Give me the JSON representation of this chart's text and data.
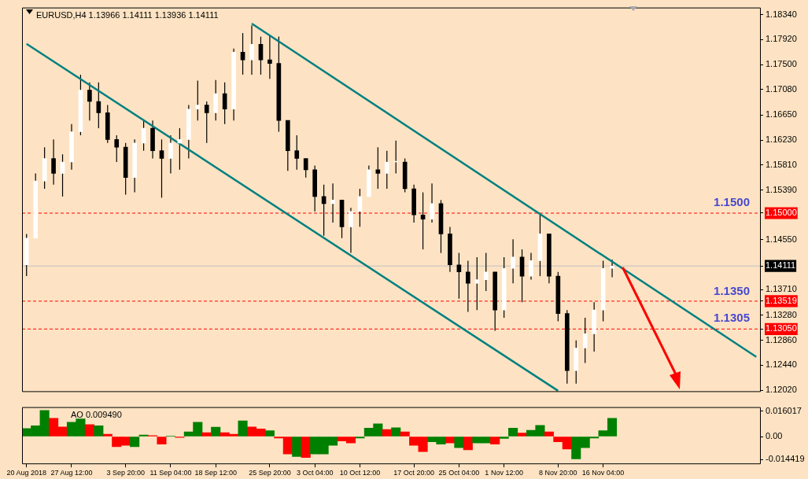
{
  "chart_data": [
    {
      "type": "candlestick",
      "title": "EURUSD,H4  1.13966 1.14111 1.13936 1.14111",
      "tick_labels": "y",
      "grid": false,
      "legend": false,
      "categories": [
        null,
        null,
        null,
        null,
        null,
        null,
        null,
        null,
        null,
        null,
        null,
        null,
        null,
        null,
        null,
        null,
        null,
        null,
        null,
        null,
        null,
        null,
        null,
        null,
        null,
        null,
        null,
        null,
        null,
        null,
        null,
        null,
        null,
        null,
        null,
        null,
        null,
        null,
        null,
        null,
        null,
        null,
        null,
        null,
        null,
        null,
        null,
        null,
        null,
        null,
        null,
        null,
        null,
        null,
        null,
        null,
        null,
        null,
        null,
        null,
        null,
        null,
        null,
        null,
        null,
        null,
        null,
        null,
        null,
        null,
        null,
        null,
        null,
        null,
        null,
        null,
        null,
        null,
        null,
        null,
        null,
        null
      ],
      "ohlc": [
        [
          1.1413,
          1.1465,
          1.1394,
          1.1458
        ],
        [
          1.1458,
          1.1567,
          1.1458,
          1.1554
        ],
        [
          1.1554,
          1.1611,
          1.1541,
          1.1592
        ],
        [
          1.1592,
          1.1624,
          1.1548,
          1.1567
        ],
        [
          1.1567,
          1.1599,
          1.1528,
          1.1586
        ],
        [
          1.1586,
          1.165,
          1.1573,
          1.1637
        ],
        [
          1.1637,
          1.1733,
          1.1631,
          1.1707
        ],
        [
          1.1707,
          1.172,
          1.1656,
          1.1688
        ],
        [
          1.1688,
          1.172,
          1.1643,
          1.1669
        ],
        [
          1.1669,
          1.1682,
          1.1618,
          1.1624
        ],
        [
          1.1624,
          1.1631,
          1.1586,
          1.1611
        ],
        [
          1.1611,
          1.1618,
          1.1531,
          1.156
        ],
        [
          1.156,
          1.1624,
          1.1535,
          1.1618
        ],
        [
          1.1618,
          1.1656,
          1.1605,
          1.1643
        ],
        [
          1.1643,
          1.1656,
          1.1592,
          1.1605
        ],
        [
          1.1605,
          1.1624,
          1.1526,
          1.1592
        ],
        [
          1.1592,
          1.1631,
          1.1567,
          1.1618
        ],
        [
          1.1618,
          1.1643,
          1.1573,
          1.1624
        ],
        [
          1.1624,
          1.1682,
          1.1592,
          1.1675
        ],
        [
          1.1675,
          1.1723,
          1.1656,
          1.1682
        ],
        [
          1.1682,
          1.1688,
          1.1618,
          1.1669
        ],
        [
          1.1669,
          1.1724,
          1.1656,
          1.1701
        ],
        [
          1.1701,
          1.172,
          1.165,
          1.1675
        ],
        [
          1.1675,
          1.1777,
          1.1656,
          1.1771
        ],
        [
          1.1771,
          1.1803,
          1.1733,
          1.1758
        ],
        [
          1.1758,
          1.1816,
          1.1733,
          1.1784
        ],
        [
          1.1784,
          1.1797,
          1.1733,
          1.1758
        ],
        [
          1.1758,
          1.1799,
          1.1726,
          1.1752
        ],
        [
          1.1752,
          1.1797,
          1.1637,
          1.1656
        ],
        [
          1.1656,
          1.1656,
          1.1571,
          1.1605
        ],
        [
          1.1605,
          1.1631,
          1.1573,
          1.1592
        ],
        [
          1.1592,
          1.1592,
          1.156,
          1.1573
        ],
        [
          1.1573,
          1.158,
          1.1503,
          1.1528
        ],
        [
          1.1528,
          1.1548,
          1.1462,
          1.1516
        ],
        [
          1.1516,
          1.155,
          1.1484,
          1.1522
        ],
        [
          1.1522,
          1.1522,
          1.1458,
          1.1477
        ],
        [
          1.1477,
          1.1509,
          1.1433,
          1.1503
        ],
        [
          1.1503,
          1.1541,
          1.1477,
          1.1528
        ],
        [
          1.1528,
          1.158,
          1.1528,
          1.1573
        ],
        [
          1.1573,
          1.1611,
          1.1541,
          1.1567
        ],
        [
          1.1567,
          1.1605,
          1.1541,
          1.1586
        ],
        [
          1.1586,
          1.1622,
          1.1567,
          1.1586
        ],
        [
          1.1586,
          1.1592,
          1.1535,
          1.1541
        ],
        [
          1.1541,
          1.1548,
          1.1484,
          1.1497
        ],
        [
          1.1497,
          1.1535,
          1.1439,
          1.149
        ],
        [
          1.149,
          1.155,
          1.1484,
          1.1516
        ],
        [
          1.1516,
          1.1522,
          1.1433,
          1.1465
        ],
        [
          1.1465,
          1.1477,
          1.1401,
          1.1413
        ],
        [
          1.1413,
          1.1433,
          1.1356,
          1.1401
        ],
        [
          1.1401,
          1.142,
          1.1334,
          1.1382
        ],
        [
          1.1382,
          1.1426,
          1.1337,
          1.1388
        ],
        [
          1.1388,
          1.1433,
          1.1369,
          1.1401
        ],
        [
          1.1401,
          1.1401,
          1.1302,
          1.1337
        ],
        [
          1.1337,
          1.1426,
          1.1324,
          1.1407
        ],
        [
          1.1407,
          1.1456,
          1.1382,
          1.1426
        ],
        [
          1.1426,
          1.1439,
          1.135,
          1.1394
        ],
        [
          1.1394,
          1.1433,
          1.1388,
          1.142
        ],
        [
          1.142,
          1.15,
          1.1394,
          1.1465
        ],
        [
          1.1465,
          1.1465,
          1.1382,
          1.1394
        ],
        [
          1.1394,
          1.1401,
          1.1318,
          1.1331
        ],
        [
          1.1331,
          1.1337,
          1.1213,
          1.1235
        ],
        [
          1.1235,
          1.1286,
          1.1213,
          1.1273
        ],
        [
          1.1273,
          1.1324,
          1.1248,
          1.1297
        ],
        [
          1.1297,
          1.135,
          1.1267,
          1.1337
        ],
        [
          1.1337,
          1.142,
          1.1318,
          1.1407
        ],
        [
          1.1407,
          1.1422,
          1.1392,
          1.1411
        ],
        null,
        null,
        null,
        null,
        null,
        null,
        null,
        null,
        null,
        null,
        null,
        null,
        null,
        null,
        null,
        null
      ],
      "series": [
        {
          "type": "line",
          "color": "#008080",
          "values": [
            1.1785,
            null,
            null,
            null,
            null,
            null,
            null,
            null,
            null,
            null,
            null,
            null,
            null,
            null,
            null,
            null,
            null,
            null,
            null,
            null,
            null,
            null,
            null,
            null,
            null,
            null,
            null,
            null,
            null,
            null,
            null,
            null,
            null,
            null,
            null,
            null,
            null,
            null,
            null,
            null,
            null,
            null,
            null,
            null,
            null,
            null,
            null,
            null,
            null,
            null,
            null,
            null,
            null,
            null,
            null,
            null,
            null,
            null,
            null,
            1.1201,
            null,
            null,
            null,
            null,
            null,
            null,
            null,
            null,
            null,
            null,
            null,
            null,
            null,
            null,
            null,
            null,
            null,
            null,
            null,
            null,
            null,
            null
          ]
        },
        {
          "type": "line",
          "color": "#008080",
          "values": [
            null,
            null,
            null,
            null,
            null,
            null,
            null,
            null,
            null,
            null,
            null,
            null,
            null,
            null,
            null,
            null,
            null,
            null,
            null,
            null,
            null,
            null,
            null,
            null,
            null,
            1.1819,
            null,
            null,
            null,
            null,
            null,
            null,
            null,
            null,
            null,
            null,
            null,
            null,
            null,
            null,
            null,
            null,
            null,
            null,
            null,
            null,
            null,
            null,
            null,
            null,
            null,
            null,
            null,
            null,
            null,
            null,
            null,
            null,
            null,
            null,
            null,
            null,
            null,
            null,
            null,
            null,
            null,
            null,
            null,
            null,
            null,
            null,
            null,
            null,
            null,
            null,
            null,
            null,
            null,
            null,
            null,
            1.1258
          ]
        }
      ],
      "ref_lines": [
        {
          "axis": "y",
          "value": 1.15,
          "label": "1.1500",
          "color": "#ff0000",
          "line_style": "dashed"
        },
        {
          "axis": "y",
          "value": 1.13519,
          "color": "#ff0000",
          "line_style": "dashed"
        },
        {
          "axis": "y",
          "value": 1.1305,
          "label": "1.1305",
          "color": "#ff0000",
          "line_style": "dashed"
        },
        {
          "axis": "y",
          "value": 1.14111,
          "color": "#c0c0c0",
          "line_style": "solid"
        }
      ],
      "annotations": [
        {
          "text": "1.1350",
          "y": 1.135
        }
      ],
      "ylim": [
        1.1199,
        1.1846
      ],
      "yticks": [
        {
          "value": 1.1834,
          "label": "1.18340"
        },
        {
          "value": 1.1792,
          "label": "1.17920"
        },
        {
          "value": 1.175,
          "label": "1.17500"
        },
        {
          "value": 1.1708,
          "label": "1.17080"
        },
        {
          "value": 1.1665,
          "label": "1.16650"
        },
        {
          "value": 1.1623,
          "label": "1.16230"
        },
        {
          "value": 1.1581,
          "label": "1.15810"
        },
        {
          "value": 1.1539,
          "label": "1.15390"
        },
        {
          "value": 1.15,
          "label": "1.15000"
        },
        {
          "value": 1.1455,
          "label": "1.14550"
        },
        {
          "value": 1.14111,
          "label": "1.14111"
        },
        {
          "value": 1.1371,
          "label": "1.13710"
        },
        {
          "value": 1.13519,
          "label": "1.13519"
        },
        {
          "value": 1.1328,
          "label": "1.13280"
        },
        {
          "value": 1.1305,
          "label": "1.13050"
        },
        {
          "value": 1.1286,
          "label": "1.12860"
        },
        {
          "value": 1.1244,
          "label": "1.12440"
        },
        {
          "value": 1.1202,
          "label": "1.12020"
        }
      ]
    },
    {
      "type": "bar",
      "title": "AO 0.009490",
      "grid": false,
      "legend": false,
      "categories": [
        "20 Aug 2018",
        null,
        null,
        null,
        null,
        "27 Aug 12:00",
        null,
        null,
        null,
        null,
        null,
        "3 Sep 20:00",
        null,
        null,
        null,
        null,
        "11 Sep 04:00",
        null,
        null,
        null,
        null,
        "18 Sep 12:00",
        null,
        null,
        null,
        null,
        null,
        "25 Sep 20:00",
        null,
        null,
        null,
        null,
        "3 Oct 04:00",
        null,
        null,
        null,
        null,
        "10 Oct 12:00",
        null,
        null,
        null,
        null,
        null,
        "17 Oct 20:00",
        null,
        null,
        null,
        null,
        "25 Oct 04:00",
        null,
        null,
        null,
        null,
        "1 Nov 12:00",
        null,
        null,
        null,
        null,
        null,
        "8 Nov 20:00",
        null,
        null,
        null,
        null,
        "16 Nov 04:00",
        null,
        null,
        null,
        null,
        null,
        null,
        null,
        null,
        null,
        null,
        null,
        null,
        null,
        null,
        null,
        null,
        null
      ],
      "values": [
        0.005,
        0.0068,
        0.0165,
        0.0115,
        0.006,
        0.0091,
        0.0112,
        0.0076,
        0.0068,
        0.0014,
        -0.0064,
        -0.0056,
        -0.0064,
        0.0009,
        0.0006,
        -0.0048,
        0.0003,
        -0.0006,
        0.0029,
        0.0091,
        0.0025,
        0.0059,
        0.0025,
        0.0014,
        0.0099,
        0.006,
        0.0048,
        0.0037,
        -0.0009,
        -0.011,
        -0.0126,
        -0.0133,
        -0.011,
        -0.011,
        -0.0056,
        -0.0028,
        -0.004,
        -0.0009,
        0.0053,
        0.0081,
        0.0045,
        0.0056,
        0.0029,
        -0.0056,
        -0.0095,
        -0.0033,
        -0.0048,
        -0.004,
        -0.0071,
        -0.0084,
        -0.004,
        -0.004,
        -0.0048,
        -0.0012,
        0.0053,
        0.0022,
        0.004,
        0.0071,
        0.0029,
        -0.0033,
        -0.0079,
        -0.0141,
        -0.0071,
        -0.0009,
        0.0037,
        0.0115,
        null,
        null,
        null,
        null,
        null,
        null,
        null,
        null,
        null,
        null,
        null,
        null,
        null,
        null,
        null,
        null
      ],
      "colors": [
        "#008000",
        "#008000",
        "#008000",
        "#ff0000",
        "#ff0000",
        "#008000",
        "#008000",
        "#ff0000",
        "#008000",
        "#ff0000",
        "#ff0000",
        "#ff0000",
        "#008000",
        "#008000",
        "#ff0000",
        "#ff0000",
        "#008000",
        "#ff0000",
        "#008000",
        "#008000",
        "#ff0000",
        "#008000",
        "#ff0000",
        "#ff0000",
        "#008000",
        "#ff0000",
        "#ff0000",
        "#008000",
        "#ff0000",
        "#ff0000",
        "#008000",
        "#ff0000",
        "#008000",
        "#008000",
        "#008000",
        "#ff0000",
        "#ff0000",
        "#008000",
        "#008000",
        "#008000",
        "#ff0000",
        "#008000",
        "#ff0000",
        "#ff0000",
        "#ff0000",
        "#008000",
        "#008000",
        "#ff0000",
        "#008000",
        "#ff0000",
        "#008000",
        "#008000",
        "#ff0000",
        "#008000",
        "#008000",
        "#ff0000",
        "#008000",
        "#008000",
        "#ff0000",
        "#ff0000",
        "#ff0000",
        "#008000",
        "#008000",
        "#008000",
        "#008000",
        "#008000",
        null,
        null,
        null,
        null,
        null,
        null,
        null,
        null,
        null,
        null,
        null,
        null,
        null,
        null,
        null,
        null
      ],
      "ylim": [
        -0.0175,
        0.0186
      ],
      "yticks": [
        {
          "value": 0.016017,
          "label": "0.016017"
        },
        {
          "value": 0,
          "label": "0.00"
        },
        {
          "value": -0.014419,
          "label": "-0.014419"
        }
      ]
    }
  ]
}
